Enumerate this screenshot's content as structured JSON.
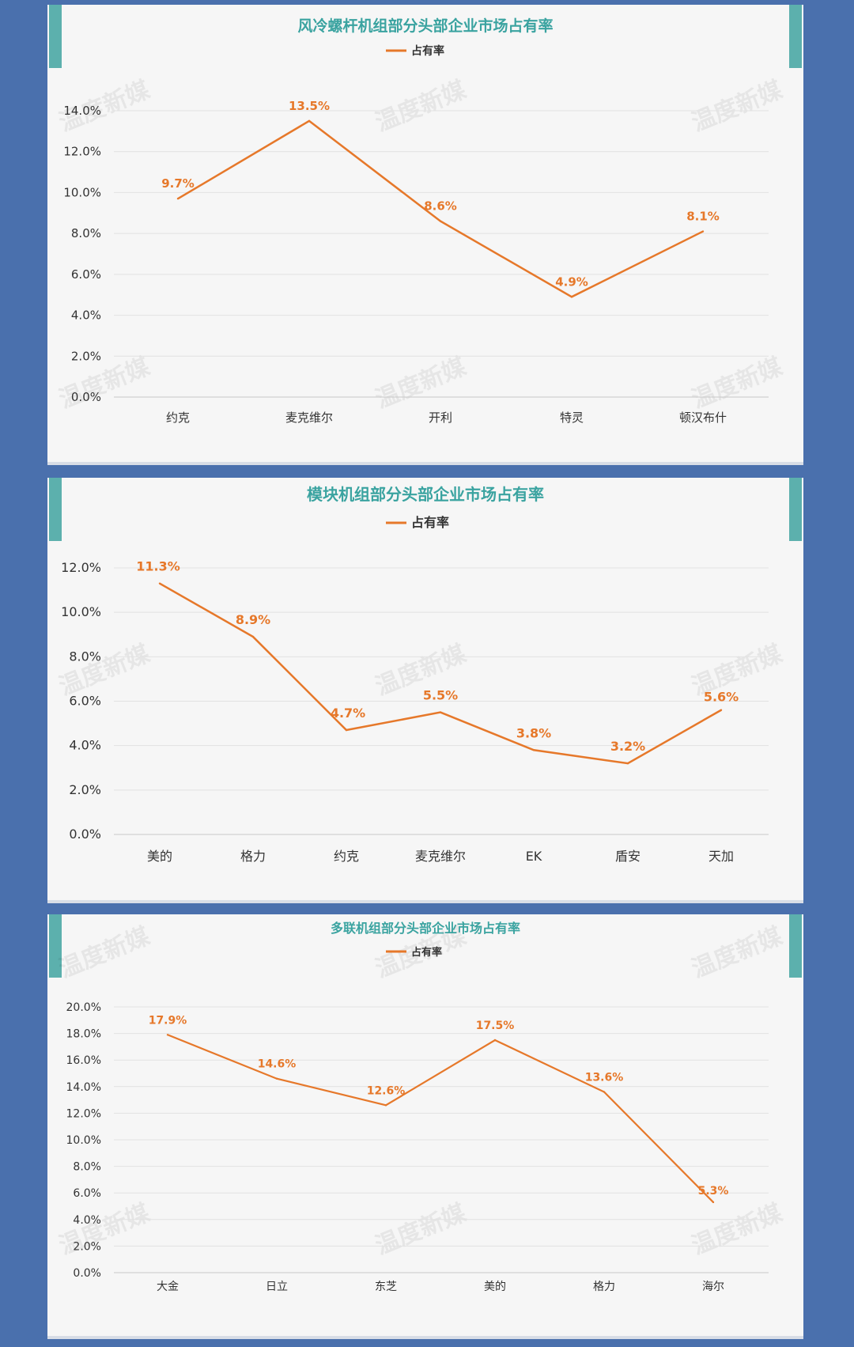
{
  "colors": {
    "background": "#4a70ad",
    "panel": "#f6f6f6",
    "accent": "#5cb0ad",
    "title": "#3aa3a0",
    "line": "#e6782a",
    "grid": "#e1e1e1",
    "axis": "#c8c8c8",
    "text": "#333333"
  },
  "watermark": "温度新媒",
  "chart_data": [
    {
      "type": "line",
      "title": "风冷螺杆机组部分头部企业市场占有率",
      "legend": "top-center",
      "grid": true,
      "categories": [
        "约克",
        "麦克维尔",
        "开利",
        "特灵",
        "顿汉布什"
      ],
      "series": [
        {
          "name": "占有率",
          "values": [
            9.7,
            13.5,
            8.6,
            4.9,
            8.1
          ]
        }
      ],
      "data_labels": [
        "9.7%",
        "13.5%",
        "8.6%",
        "4.9%",
        "8.1%"
      ],
      "yticks": [
        "0.0%",
        "2.0%",
        "4.0%",
        "6.0%",
        "8.0%",
        "10.0%",
        "12.0%",
        "14.0%"
      ],
      "ylim": [
        0,
        14
      ]
    },
    {
      "type": "line",
      "title": "模块机组部分头部企业市场占有率",
      "legend": "top-center",
      "grid": true,
      "categories": [
        "美的",
        "格力",
        "约克",
        "麦克维尔",
        "EK",
        "盾安",
        "天加"
      ],
      "series": [
        {
          "name": "占有率",
          "values": [
            11.3,
            8.9,
            4.7,
            5.5,
            3.8,
            3.2,
            5.6
          ]
        }
      ],
      "data_labels": [
        "11.3%",
        "8.9%",
        "4.7%",
        "5.5%",
        "3.8%",
        "3.2%",
        "5.6%"
      ],
      "yticks": [
        "0.0%",
        "2.0%",
        "4.0%",
        "6.0%",
        "8.0%",
        "10.0%",
        "12.0%"
      ],
      "ylim": [
        0,
        12
      ]
    },
    {
      "type": "line",
      "title": "多联机组部分头部企业市场占有率",
      "legend": "top-center",
      "grid": true,
      "categories": [
        "大金",
        "日立",
        "东芝",
        "美的",
        "格力",
        "海尔"
      ],
      "series": [
        {
          "name": "占有率",
          "values": [
            17.9,
            14.6,
            12.6,
            17.5,
            13.6,
            5.3
          ]
        }
      ],
      "data_labels": [
        "17.9%",
        "14.6%",
        "12.6%",
        "17.5%",
        "13.6%",
        "5.3%"
      ],
      "yticks": [
        "0.0%",
        "2.0%",
        "4.0%",
        "6.0%",
        "8.0%",
        "10.0%",
        "12.0%",
        "14.0%",
        "16.0%",
        "18.0%",
        "20.0%"
      ],
      "ylim": [
        0,
        20
      ]
    }
  ]
}
